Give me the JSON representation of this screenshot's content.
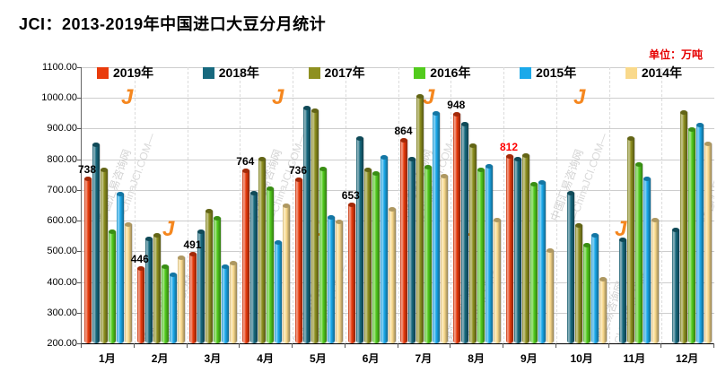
{
  "header": {
    "title": "JCI：2013-2019年中国进口大豆分月统计",
    "unit": "单位：万吨"
  },
  "watermark": {
    "text_cn": "中国汇易咨询网",
    "text_en": "—ChinaJCI.COM—",
    "logo": "J"
  },
  "chart_data": {
    "type": "bar",
    "style": "3d-cylinder",
    "title": "JCI：2013-2019年中国进口大豆分月统计",
    "unit_label": "单位：万吨",
    "categories": [
      "1月",
      "2月",
      "3月",
      "4月",
      "5月",
      "6月",
      "7月",
      "8月",
      "9月",
      "10月",
      "11月",
      "12月"
    ],
    "series": [
      {
        "name": "2019年",
        "color": "#E93B0C",
        "values": [
          738,
          446,
          491,
          764,
          736,
          653,
          864,
          948,
          812,
          null,
          null,
          null
        ]
      },
      {
        "name": "2018年",
        "color": "#17697E",
        "values": [
          848,
          542,
          566,
          692,
          969,
          870,
          801,
          915,
          801,
          692,
          538,
          572
        ]
      },
      {
        "name": "2017年",
        "color": "#8E9020",
        "values": [
          766,
          554,
          633,
          802,
          959,
          768,
          1008,
          845,
          813,
          586,
          868,
          955
        ]
      },
      {
        "name": "2016年",
        "color": "#52CB1D",
        "values": [
          566,
          451,
          610,
          707,
          769,
          756,
          776,
          767,
          721,
          521,
          784,
          899
        ]
      },
      {
        "name": "2015年",
        "color": "#1BA9EA",
        "values": [
          688,
          426,
          450,
          531,
          613,
          809,
          950,
          778,
          726,
          553,
          739,
          912
        ]
      },
      {
        "name": "2014年",
        "color": "#F9D98B",
        "values": [
          590,
          481,
          462,
          650,
          597,
          639,
          747,
          603,
          503,
          410,
          603,
          853
        ]
      }
    ],
    "data_labels": [
      {
        "month": 0,
        "text": "738",
        "color": "#000000"
      },
      {
        "month": 1,
        "text": "446",
        "color": "#000000"
      },
      {
        "month": 2,
        "text": "491",
        "color": "#000000"
      },
      {
        "month": 3,
        "text": "764",
        "color": "#000000"
      },
      {
        "month": 4,
        "text": "736",
        "color": "#000000"
      },
      {
        "month": 5,
        "text": "653",
        "color": "#000000"
      },
      {
        "month": 6,
        "text": "864",
        "color": "#000000"
      },
      {
        "month": 7,
        "text": "948",
        "color": "#000000"
      },
      {
        "month": 8,
        "text": "812",
        "color": "#FF0000"
      }
    ],
    "ylim": [
      200,
      1100
    ],
    "ytick_step": 100,
    "ytick_labels": [
      "200.00",
      "300.00",
      "400.00",
      "500.00",
      "600.00",
      "700.00",
      "800.00",
      "900.00",
      "1000.00",
      "1100.00"
    ],
    "grid": true,
    "legend_position": "top-inside"
  }
}
